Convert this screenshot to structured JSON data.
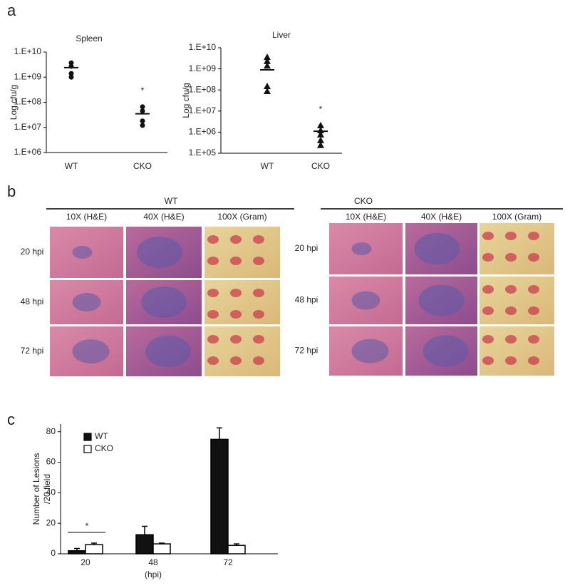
{
  "panel_labels": [
    "a",
    "b",
    "c"
  ],
  "chart_data": [
    {
      "type": "dot",
      "title": "Spleen",
      "y_label": "Log cfu/g",
      "log_scale": true,
      "marker": "circle",
      "color": "#111111",
      "categories": [
        "WT",
        "CKO"
      ],
      "values": [
        [
          3700000000,
          2700000000,
          1400000000,
          1000000000
        ],
        [
          66000000,
          45000000,
          18000000,
          12000000
        ]
      ],
      "means": [
        2400000000,
        35000000
      ],
      "annotation": "*",
      "ylim": [
        1000000,
        10000000000
      ],
      "yticks": [
        {
          "value": 1000000,
          "label": "1.E+06"
        },
        {
          "value": 10000000,
          "label": "1.E+07"
        },
        {
          "value": 100000000,
          "label": "1.E+08"
        },
        {
          "value": 1000000000,
          "label": "1.E+09"
        },
        {
          "value": 10000000000,
          "label": "1.E+10"
        }
      ]
    },
    {
      "type": "dot",
      "title": "Liver",
      "y_label": "Log cfu/g",
      "log_scale": true,
      "marker": "triangle",
      "color": "#111111",
      "categories": [
        "WT",
        "CKO"
      ],
      "values": [
        [
          3600000000,
          2300000000,
          1400000000,
          150000000,
          87000000
        ],
        [
          2100000,
          1200000,
          760000,
          410000,
          240000
        ]
      ],
      "means": [
        900000000,
        1100000
      ],
      "annotation": "*",
      "ylim": [
        100000,
        10000000000
      ],
      "yticks": [
        {
          "value": 100000,
          "label": "1.E+05"
        },
        {
          "value": 1000000,
          "label": "1.E+06"
        },
        {
          "value": 10000000,
          "label": "1.E+07"
        },
        {
          "value": 100000000,
          "label": "1.E+08"
        },
        {
          "value": 1000000000,
          "label": "1.E+09"
        },
        {
          "value": 10000000000,
          "label": "1.E+10"
        }
      ]
    },
    {
      "type": "bar",
      "y_label": [
        "Number of Lesions",
        "/20 field"
      ],
      "x_label": "(hpi)",
      "categories": [
        "20",
        "48",
        "72"
      ],
      "series": [
        {
          "name": "WT",
          "color": "#111111",
          "values": [
            2,
            12.5,
            75
          ],
          "errors": [
            1.5,
            5.5,
            7.5
          ]
        },
        {
          "name": "CKO",
          "color": "#ffffff",
          "values": [
            6,
            6.5,
            5.5
          ],
          "errors": [
            1,
            0.5,
            1
          ]
        }
      ],
      "annotation": "*",
      "legend": "upper left",
      "ylim": [
        0,
        85
      ],
      "yticks": [
        0,
        20,
        40,
        60,
        80
      ]
    }
  ],
  "histology": {
    "groups": [
      {
        "name": "WT",
        "columns": [
          "10X (H&E)",
          "40X (H&E)",
          "100X (Gram)"
        ],
        "rows": [
          "20 hpi",
          "48 hpi",
          "72 hpi"
        ]
      },
      {
        "name": "CKO",
        "columns": [
          "10X (H&E)",
          "40X (H&E)",
          "100X (Gram)"
        ],
        "rows": [
          "20 hpi",
          "48 hpi",
          "72 hpi"
        ]
      }
    ]
  }
}
